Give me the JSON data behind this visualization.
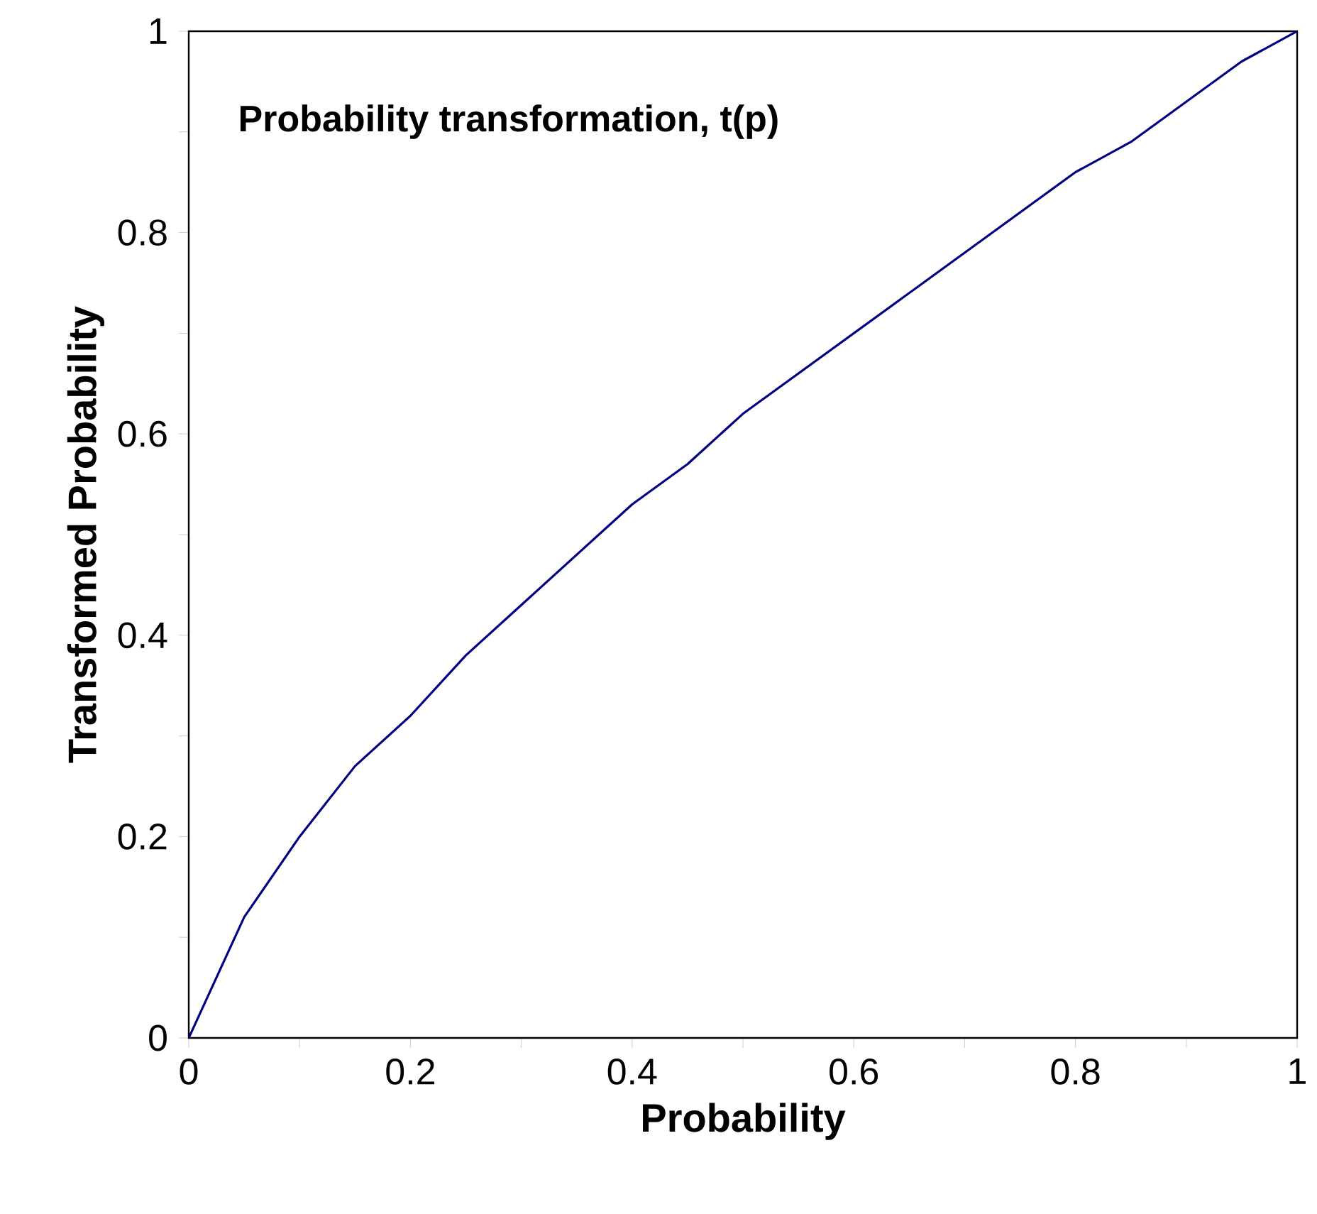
{
  "chart_data": {
    "type": "line",
    "title": "Probability transformation, t(p)",
    "xlabel": "Probability",
    "ylabel": "Transformed Probability",
    "x": [
      0,
      0.05,
      0.1,
      0.15,
      0.2,
      0.25,
      0.3,
      0.35,
      0.4,
      0.45,
      0.5,
      0.55,
      0.6,
      0.65,
      0.7,
      0.75,
      0.8,
      0.85,
      0.9,
      0.95,
      1
    ],
    "series": [
      {
        "color": "#000080",
        "values": [
          0,
          0.12,
          0.2,
          0.27,
          0.32,
          0.38,
          0.43,
          0.48,
          0.53,
          0.57,
          0.62,
          0.66,
          0.7,
          0.74,
          0.78,
          0.82,
          0.86,
          0.89,
          0.93,
          0.97,
          1
        ]
      }
    ],
    "xlim": [
      0,
      1
    ],
    "ylim": [
      0,
      1
    ],
    "xticks": [
      0,
      {
        "value": 0.1,
        "label": null
      },
      0.2,
      {
        "value": 0.3,
        "label": null
      },
      0.4,
      {
        "value": 0.5,
        "label": null
      },
      0.6,
      {
        "value": 0.7,
        "label": null
      },
      0.8,
      {
        "value": 0.9,
        "label": null
      },
      1
    ],
    "yticks": [
      0,
      {
        "value": 0.1,
        "label": null
      },
      0.2,
      {
        "value": 0.3,
        "label": null
      },
      0.4,
      {
        "value": 0.5,
        "label": null
      },
      0.6,
      {
        "value": 0.7,
        "label": null
      },
      0.8,
      {
        "value": 0.9,
        "label": null
      },
      1
    ],
    "grid": false,
    "marker": "none",
    "line_style": "solid"
  }
}
